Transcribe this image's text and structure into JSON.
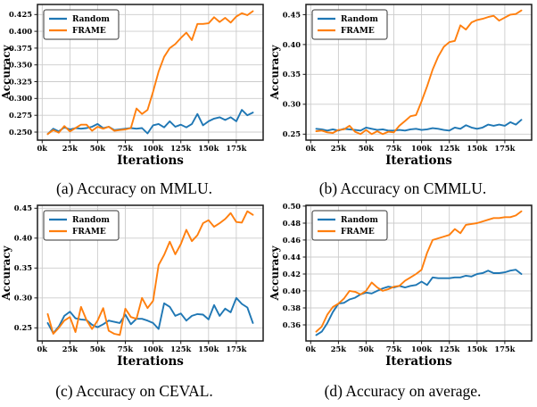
{
  "colors": {
    "random": "#1f77b4",
    "frame": "#ff7f0e",
    "grid": "#cccccc",
    "spine": "#1a1a1a",
    "text": "#000000",
    "legend_bg": "#ffffff",
    "legend_border": "#333333"
  },
  "captions": [
    "(a) Accuracy on MMLU.",
    "(b) Accuracy on CMMLU.",
    "(c) Accuracy on CEVAL.",
    "(d) Accuracy on average."
  ],
  "chart_data": [
    {
      "type": "line",
      "title": "Accuracy on MMLU",
      "xlabel": "Iterations",
      "ylabel": "Accuracy",
      "legend_position": "upper left",
      "grid": true,
      "x": [
        5,
        10,
        15,
        20,
        25,
        30,
        35,
        40,
        45,
        50,
        55,
        60,
        65,
        70,
        75,
        80,
        85,
        90,
        95,
        100,
        105,
        110,
        115,
        120,
        125,
        130,
        135,
        140,
        145,
        150,
        155,
        160,
        165,
        170,
        175,
        180,
        185,
        190
      ],
      "xlim": [
        -4.25,
        199.25
      ],
      "ylim": [
        0.238,
        0.44
      ],
      "xticks": {
        "values": [
          0,
          25,
          50,
          75,
          100,
          125,
          150,
          175
        ],
        "labels": [
          "0k",
          "25k",
          "50k",
          "75k",
          "100k",
          "125k",
          "150k",
          "175k"
        ]
      },
      "yticks": {
        "values": [
          0.25,
          0.275,
          0.3,
          0.325,
          0.35,
          0.375,
          0.4,
          0.425
        ],
        "labels": [
          "0.250",
          "0.275",
          "0.300",
          "0.325",
          "0.350",
          "0.375",
          "0.400",
          "0.425"
        ]
      },
      "series": [
        {
          "name": "Random",
          "color": "#1f77b4",
          "values": [
            0.247,
            0.255,
            0.251,
            0.257,
            0.254,
            0.256,
            0.255,
            0.256,
            0.258,
            0.262,
            0.256,
            0.258,
            0.253,
            0.254,
            0.255,
            0.256,
            0.255,
            0.256,
            0.248,
            0.26,
            0.262,
            0.257,
            0.266,
            0.258,
            0.261,
            0.257,
            0.262,
            0.277,
            0.26,
            0.266,
            0.27,
            0.272,
            0.268,
            0.272,
            0.266,
            0.283,
            0.275,
            0.279
          ]
        },
        {
          "name": "FRAME",
          "color": "#ff7f0e",
          "values": [
            0.247,
            0.253,
            0.249,
            0.259,
            0.251,
            0.256,
            0.261,
            0.261,
            0.252,
            0.258,
            0.255,
            0.258,
            0.252,
            0.253,
            0.254,
            0.256,
            0.285,
            0.277,
            0.283,
            0.31,
            0.34,
            0.362,
            0.375,
            0.381,
            0.39,
            0.398,
            0.387,
            0.411,
            0.411,
            0.412,
            0.421,
            0.414,
            0.42,
            0.413,
            0.422,
            0.427,
            0.424,
            0.43
          ]
        }
      ]
    },
    {
      "type": "line",
      "title": "Accuracy on CMMLU",
      "xlabel": "Iterations",
      "ylabel": "Accuracy",
      "legend_position": "upper left",
      "grid": true,
      "x": [
        5,
        10,
        15,
        20,
        25,
        30,
        35,
        40,
        45,
        50,
        55,
        60,
        65,
        70,
        75,
        80,
        85,
        90,
        95,
        100,
        105,
        110,
        115,
        120,
        125,
        130,
        135,
        140,
        145,
        150,
        155,
        160,
        165,
        170,
        175,
        180,
        185,
        190
      ],
      "xlim": [
        -4.25,
        199.25
      ],
      "ylim": [
        0.24,
        0.467
      ],
      "xticks": {
        "values": [
          0,
          25,
          50,
          75,
          100,
          125,
          150,
          175
        ],
        "labels": [
          "0k",
          "25k",
          "50k",
          "75k",
          "100k",
          "125k",
          "150k",
          "175k"
        ]
      },
      "yticks": {
        "values": [
          0.25,
          0.3,
          0.35,
          0.4,
          0.45
        ],
        "labels": [
          "0.25",
          "0.30",
          "0.35",
          "0.40",
          "0.45"
        ]
      },
      "series": [
        {
          "name": "Random",
          "color": "#1f77b4",
          "values": [
            0.259,
            0.258,
            0.256,
            0.258,
            0.256,
            0.259,
            0.258,
            0.257,
            0.256,
            0.261,
            0.259,
            0.257,
            0.258,
            0.256,
            0.256,
            0.257,
            0.256,
            0.258,
            0.259,
            0.257,
            0.258,
            0.26,
            0.259,
            0.257,
            0.256,
            0.261,
            0.259,
            0.265,
            0.261,
            0.259,
            0.261,
            0.266,
            0.264,
            0.266,
            0.264,
            0.27,
            0.266,
            0.274
          ]
        },
        {
          "name": "FRAME",
          "color": "#ff7f0e",
          "values": [
            0.255,
            0.256,
            0.253,
            0.252,
            0.257,
            0.258,
            0.264,
            0.254,
            0.25,
            0.257,
            0.25,
            0.255,
            0.25,
            0.254,
            0.253,
            0.264,
            0.272,
            0.28,
            0.282,
            0.305,
            0.33,
            0.358,
            0.38,
            0.396,
            0.404,
            0.406,
            0.432,
            0.425,
            0.437,
            0.441,
            0.443,
            0.446,
            0.448,
            0.44,
            0.445,
            0.45,
            0.451,
            0.457
          ]
        }
      ]
    },
    {
      "type": "line",
      "title": "Accuracy on CEVAL",
      "xlabel": "Iterations",
      "ylabel": "Accuracy",
      "legend_position": "upper left",
      "grid": true,
      "x": [
        5,
        10,
        15,
        20,
        25,
        30,
        35,
        40,
        45,
        50,
        55,
        60,
        65,
        70,
        75,
        80,
        85,
        90,
        95,
        100,
        105,
        110,
        115,
        120,
        125,
        130,
        135,
        140,
        145,
        150,
        155,
        160,
        165,
        170,
        175,
        180,
        185,
        190
      ],
      "xlim": [
        -4.25,
        199.25
      ],
      "ylim": [
        0.228,
        0.455
      ],
      "xticks": {
        "values": [
          0,
          25,
          50,
          75,
          100,
          125,
          150,
          175
        ],
        "labels": [
          "0k",
          "25k",
          "50k",
          "75k",
          "100k",
          "125k",
          "150k",
          "175k"
        ]
      },
      "yticks": {
        "values": [
          0.25,
          0.3,
          0.35,
          0.4,
          0.45
        ],
        "labels": [
          "0.25",
          "0.30",
          "0.35",
          "0.40",
          "0.45"
        ]
      },
      "series": [
        {
          "name": "Random",
          "color": "#1f77b4",
          "values": [
            0.258,
            0.241,
            0.252,
            0.27,
            0.277,
            0.266,
            0.264,
            0.263,
            0.255,
            0.251,
            0.256,
            0.262,
            0.26,
            0.258,
            0.272,
            0.256,
            0.265,
            0.265,
            0.262,
            0.258,
            0.248,
            0.291,
            0.285,
            0.27,
            0.274,
            0.262,
            0.27,
            0.273,
            0.272,
            0.264,
            0.288,
            0.27,
            0.282,
            0.276,
            0.3,
            0.29,
            0.284,
            0.258
          ]
        },
        {
          "name": "FRAME",
          "color": "#ff7f0e",
          "values": [
            0.273,
            0.24,
            0.25,
            0.262,
            0.268,
            0.243,
            0.285,
            0.263,
            0.248,
            0.262,
            0.283,
            0.245,
            0.24,
            0.238,
            0.282,
            0.268,
            0.265,
            0.3,
            0.283,
            0.295,
            0.355,
            0.372,
            0.394,
            0.373,
            0.39,
            0.414,
            0.395,
            0.405,
            0.425,
            0.43,
            0.419,
            0.425,
            0.432,
            0.442,
            0.427,
            0.426,
            0.445,
            0.439
          ]
        }
      ]
    },
    {
      "type": "line",
      "title": "Accuracy on average",
      "xlabel": "Iterations",
      "ylabel": "Accuracy",
      "legend_position": "upper left",
      "grid": true,
      "x": [
        5,
        10,
        15,
        20,
        25,
        30,
        35,
        40,
        45,
        50,
        55,
        60,
        65,
        70,
        75,
        80,
        85,
        90,
        95,
        100,
        105,
        110,
        115,
        120,
        125,
        130,
        135,
        140,
        145,
        150,
        155,
        160,
        165,
        170,
        175,
        180,
        185,
        190
      ],
      "xlim": [
        -4.25,
        199.25
      ],
      "ylim": [
        0.341,
        0.501
      ],
      "xticks": {
        "values": [
          0,
          25,
          50,
          75,
          100,
          125,
          150,
          175
        ],
        "labels": [
          "0k",
          "25k",
          "50k",
          "75k",
          "100k",
          "125k",
          "150k",
          "175k"
        ]
      },
      "yticks": {
        "values": [
          0.36,
          0.38,
          0.4,
          0.42,
          0.44,
          0.46,
          0.48,
          0.5
        ],
        "labels": [
          "0.36",
          "0.38",
          "0.40",
          "0.42",
          "0.44",
          "0.46",
          "0.48",
          "0.50"
        ]
      },
      "series": [
        {
          "name": "Random",
          "color": "#1f77b4",
          "values": [
            0.348,
            0.352,
            0.362,
            0.375,
            0.385,
            0.386,
            0.39,
            0.392,
            0.396,
            0.398,
            0.397,
            0.4,
            0.403,
            0.405,
            0.404,
            0.406,
            0.404,
            0.406,
            0.407,
            0.411,
            0.407,
            0.416,
            0.415,
            0.415,
            0.415,
            0.416,
            0.416,
            0.418,
            0.417,
            0.42,
            0.421,
            0.424,
            0.421,
            0.421,
            0.422,
            0.424,
            0.425,
            0.42
          ]
        },
        {
          "name": "FRAME",
          "color": "#ff7f0e",
          "values": [
            0.352,
            0.358,
            0.372,
            0.381,
            0.385,
            0.391,
            0.4,
            0.399,
            0.396,
            0.4,
            0.41,
            0.404,
            0.4,
            0.402,
            0.405,
            0.406,
            0.412,
            0.416,
            0.42,
            0.425,
            0.445,
            0.46,
            0.462,
            0.464,
            0.466,
            0.473,
            0.468,
            0.478,
            0.479,
            0.48,
            0.482,
            0.484,
            0.486,
            0.486,
            0.487,
            0.487,
            0.489,
            0.494
          ]
        }
      ]
    }
  ]
}
